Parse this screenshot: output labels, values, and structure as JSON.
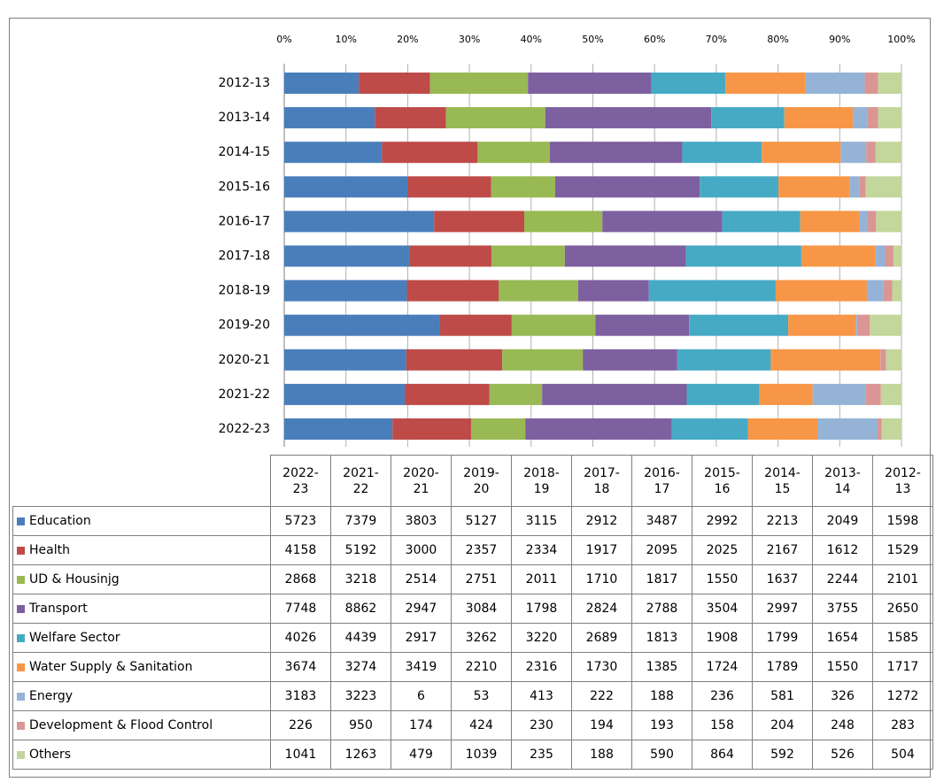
{
  "chart_data": {
    "type": "stacked_bar_100",
    "categories": [
      "2022-23",
      "2021-22",
      "2020-21",
      "2019-20",
      "2018-19",
      "2017-18",
      "2016-17",
      "2015-16",
      "2014-15",
      "2013-14",
      "2012-13"
    ],
    "series": [
      {
        "name": "Education",
        "color": "#4a7ebb",
        "values": [
          5723,
          7379,
          3803,
          5127,
          3115,
          2912,
          3487,
          2992,
          2213,
          2049,
          1598
        ]
      },
      {
        "name": "Health",
        "color": "#be4b48",
        "values": [
          4158,
          5192,
          3000,
          2357,
          2334,
          1917,
          2095,
          2025,
          2167,
          1612,
          1529
        ]
      },
      {
        "name": "UD & Housinjg",
        "color": "#98b954",
        "values": [
          2868,
          3218,
          2514,
          2751,
          2011,
          1710,
          1817,
          1550,
          1637,
          2244,
          2101
        ]
      },
      {
        "name": "Transport",
        "color": "#7d60a0",
        "values": [
          7748,
          8862,
          2947,
          3084,
          1798,
          2824,
          2788,
          3504,
          2997,
          3755,
          2650
        ]
      },
      {
        "name": "Welfare Sector",
        "color": "#46aac5",
        "values": [
          4026,
          4439,
          2917,
          3262,
          3220,
          2689,
          1813,
          1908,
          1799,
          1654,
          1585
        ]
      },
      {
        "name": "Water Supply & Sanitation",
        "color": "#f79646",
        "values": [
          3674,
          3274,
          3419,
          2210,
          2316,
          1730,
          1385,
          1724,
          1789,
          1550,
          1717
        ]
      },
      {
        "name": "Energy",
        "color": "#95b3d7",
        "values": [
          3183,
          3223,
          6,
          53,
          413,
          222,
          188,
          236,
          581,
          326,
          1272
        ]
      },
      {
        "name": "Development & Flood Control",
        "color": "#d99694",
        "values": [
          226,
          950,
          174,
          424,
          230,
          194,
          193,
          158,
          204,
          248,
          283
        ]
      },
      {
        "name": "Others",
        "color": "#c3d69b",
        "values": [
          1041,
          1263,
          479,
          1039,
          235,
          188,
          590,
          864,
          592,
          526,
          504
        ]
      }
    ],
    "xlim": [
      0,
      100
    ],
    "xticks": [
      {
        "value": 0,
        "label": "0%"
      },
      {
        "value": 10,
        "label": "10%"
      },
      {
        "value": 20,
        "label": "20%"
      },
      {
        "value": 30,
        "label": "30%"
      },
      {
        "value": 40,
        "label": "40%"
      },
      {
        "value": 50,
        "label": "50%"
      },
      {
        "value": 60,
        "label": "60%"
      },
      {
        "value": 70,
        "label": "70%"
      },
      {
        "value": 80,
        "label": "80%"
      },
      {
        "value": 90,
        "label": "90%"
      },
      {
        "value": 100,
        "label": "100%"
      }
    ],
    "grid": true
  }
}
